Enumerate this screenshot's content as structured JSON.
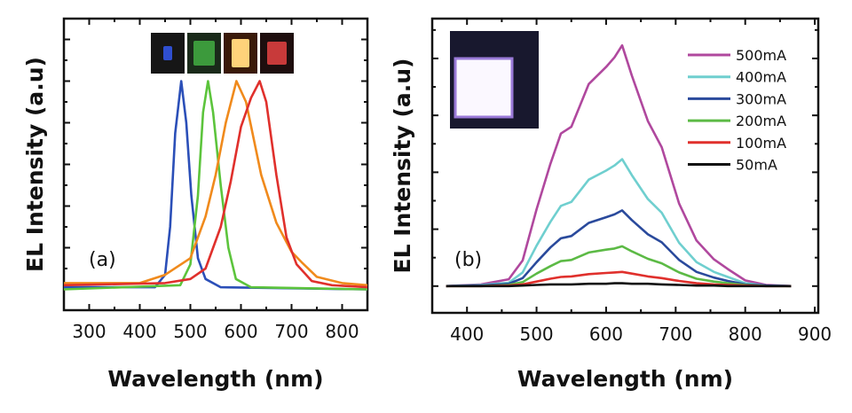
{
  "chart_data": [
    {
      "type": "line",
      "panel_label": "(a)",
      "xlabel": "Wavelength (nm)",
      "ylabel": "EL Intensity (a.u)",
      "xlim": [
        250,
        850
      ],
      "ylim": [
        -0.1,
        1.3
      ],
      "xticks": [
        300,
        400,
        500,
        600,
        700,
        800
      ],
      "y_tick_labels_shown": false,
      "grid": false,
      "inset_images": [
        "blue-device-photo",
        "green-device-photo",
        "orange-device-photo",
        "red-device-photo"
      ],
      "series": [
        {
          "color": "#2b4fb8",
          "x": [
            250,
            430,
            450,
            460,
            470,
            482,
            492,
            502,
            515,
            530,
            560,
            850
          ],
          "y": [
            0.01,
            0.01,
            0.07,
            0.3,
            0.75,
            1.0,
            0.8,
            0.45,
            0.15,
            0.05,
            0.01,
            0.0
          ]
        },
        {
          "color": "#5cc43c",
          "x": [
            250,
            480,
            500,
            515,
            525,
            535,
            545,
            560,
            575,
            590,
            620,
            850
          ],
          "y": [
            0.0,
            0.02,
            0.12,
            0.45,
            0.85,
            1.0,
            0.85,
            0.5,
            0.2,
            0.05,
            0.01,
            0.0
          ]
        },
        {
          "color": "#f08a1c",
          "x": [
            250,
            400,
            450,
            500,
            530,
            550,
            570,
            591,
            610,
            640,
            670,
            700,
            720,
            750,
            800,
            850
          ],
          "y": [
            0.03,
            0.03,
            0.07,
            0.15,
            0.35,
            0.55,
            0.8,
            1.0,
            0.9,
            0.55,
            0.32,
            0.18,
            0.13,
            0.06,
            0.03,
            0.02
          ]
        },
        {
          "color": "#e0302c",
          "x": [
            250,
            450,
            500,
            530,
            560,
            580,
            600,
            620,
            637,
            650,
            670,
            690,
            710,
            740,
            780,
            850
          ],
          "y": [
            0.02,
            0.03,
            0.05,
            0.1,
            0.3,
            0.52,
            0.78,
            0.92,
            1.0,
            0.9,
            0.55,
            0.25,
            0.12,
            0.04,
            0.02,
            0.01
          ]
        }
      ]
    },
    {
      "type": "line",
      "panel_label": "(b)",
      "xlabel": "Wavelength (nm)",
      "ylabel": "EL Intensity (a.u)",
      "xlim": [
        350,
        905
      ],
      "ylim": [
        -0.47,
        4.7
      ],
      "xticks": [
        400,
        500,
        600,
        700,
        800,
        900
      ],
      "y_tick_labels_shown": false,
      "grid": false,
      "legend": "top-right",
      "inset_images": [
        "white-device-photo"
      ],
      "x": [
        370,
        420,
        460,
        480,
        500,
        520,
        535,
        550,
        575,
        600,
        612,
        623,
        637,
        660,
        680,
        705,
        730,
        755,
        775,
        800,
        830,
        866
      ],
      "series": [
        {
          "name": "500mA",
          "color": "#b0489e",
          "values": [
            0,
            0.03,
            0.12,
            0.45,
            1.35,
            2.15,
            2.68,
            2.8,
            3.55,
            3.85,
            4.02,
            4.23,
            3.7,
            2.9,
            2.44,
            1.45,
            0.8,
            0.47,
            0.3,
            0.1,
            0.02,
            0
          ]
        },
        {
          "name": "400mA",
          "color": "#6fcfcf",
          "values": [
            0,
            0.02,
            0.06,
            0.24,
            0.71,
            1.13,
            1.41,
            1.48,
            1.87,
            2.03,
            2.12,
            2.23,
            1.95,
            1.53,
            1.29,
            0.76,
            0.42,
            0.25,
            0.16,
            0.05,
            0.01,
            0
          ]
        },
        {
          "name": "300mA",
          "color": "#2a4a9c",
          "values": [
            0,
            0.01,
            0.04,
            0.14,
            0.42,
            0.68,
            0.84,
            0.88,
            1.11,
            1.21,
            1.26,
            1.33,
            1.16,
            0.91,
            0.77,
            0.46,
            0.25,
            0.15,
            0.09,
            0.03,
            0.01,
            0
          ]
        },
        {
          "name": "200mA",
          "color": "#5cba45",
          "values": [
            0,
            0,
            0.02,
            0.07,
            0.22,
            0.35,
            0.44,
            0.46,
            0.59,
            0.64,
            0.66,
            0.7,
            0.61,
            0.48,
            0.4,
            0.24,
            0.13,
            0.08,
            0.05,
            0.02,
            0,
            0
          ]
        },
        {
          "name": "100mA",
          "color": "#e0302c",
          "values": [
            0,
            0,
            0.01,
            0.03,
            0.08,
            0.13,
            0.16,
            0.17,
            0.21,
            0.23,
            0.24,
            0.25,
            0.22,
            0.17,
            0.14,
            0.09,
            0.05,
            0.03,
            0.02,
            0.01,
            0,
            0
          ]
        },
        {
          "name": "50mA",
          "color": "#111111",
          "values": [
            0,
            0,
            0,
            0.01,
            0.02,
            0.03,
            0.03,
            0.03,
            0.04,
            0.04,
            0.05,
            0.05,
            0.04,
            0.04,
            0.03,
            0.02,
            0.01,
            0.01,
            0,
            0,
            0,
            0
          ]
        }
      ]
    }
  ]
}
